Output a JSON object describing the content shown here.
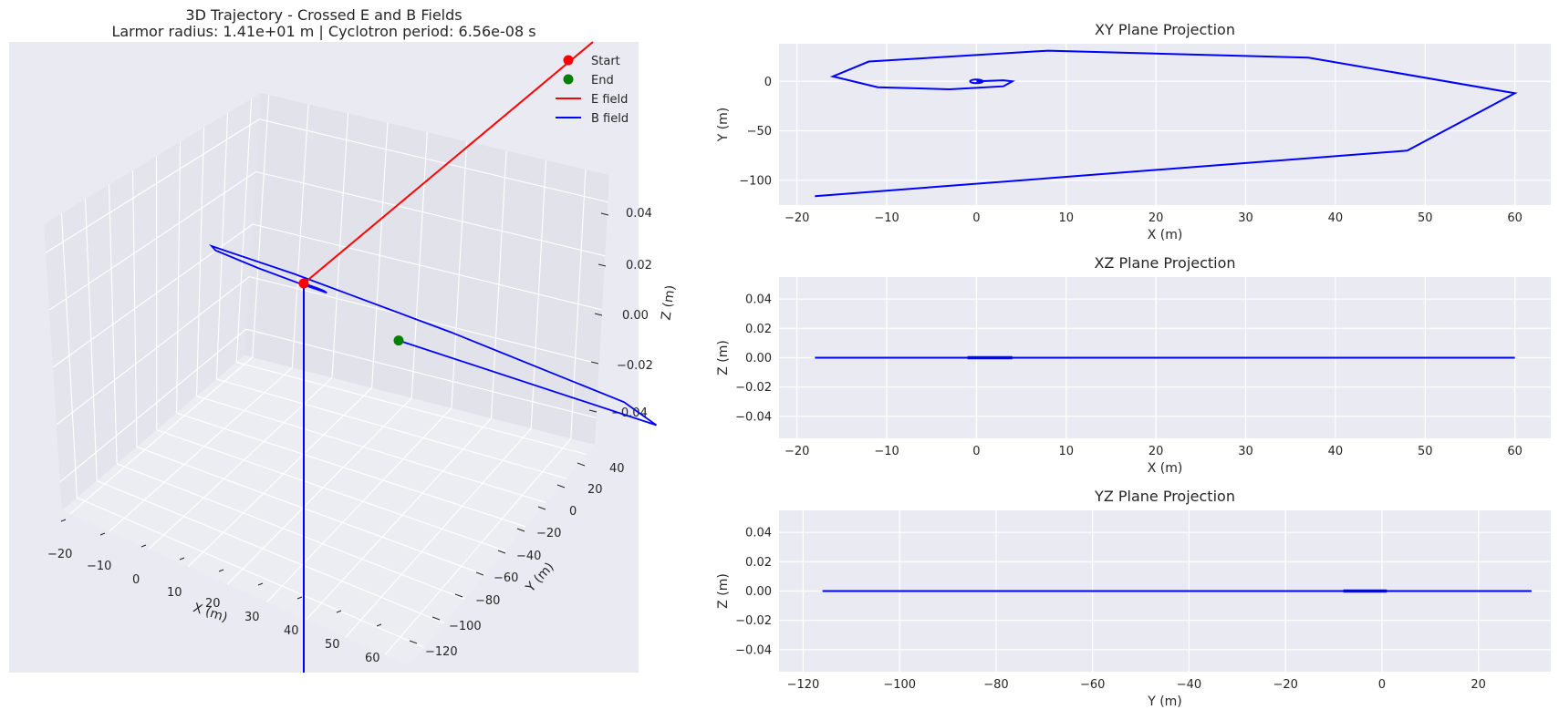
{
  "colors": {
    "panel_bg": "#eaeaf2",
    "grid": "#ffffff",
    "trajectory": "#0000ff",
    "e_field": "#ff0000",
    "start": "#ff0000",
    "end": "#008000"
  },
  "chart_data": [
    {
      "type": "line",
      "projection": "3d",
      "title": "3D Trajectory - Crossed E and B Fields",
      "subtitle": "Larmor radius: 1.41e+01 m | Cyclotron period: 6.56e-08 s",
      "xlabel": "X (m)",
      "ylabel": "Y (m)",
      "zlabel": "Z (m)",
      "xlim": [
        -22,
        66
      ],
      "ylim": [
        -135,
        48
      ],
      "zlim": [
        -0.05,
        0.05
      ],
      "x_ticks": [
        "−20",
        "−10",
        "0",
        "10",
        "20",
        "30",
        "40",
        "50",
        "60"
      ],
      "y_ticks": [
        "−120",
        "−100",
        "−80",
        "−60",
        "−40",
        "−20",
        "0",
        "20",
        "40"
      ],
      "z_ticks": [
        "−0.04",
        "−0.02",
        "0.00",
        "0.02",
        "0.04"
      ],
      "grid": true,
      "legend_position": "top-right",
      "legend": [
        {
          "label": "Start",
          "kind": "marker",
          "color": "#ff0000"
        },
        {
          "label": "End",
          "kind": "marker",
          "color": "#008000"
        },
        {
          "label": "E field",
          "kind": "line",
          "color": "#ff0000"
        },
        {
          "label": "B field",
          "kind": "line",
          "color": "#0000ff"
        }
      ],
      "trajectory": {
        "x": [
          0,
          3,
          4,
          3,
          -3,
          -11,
          -16,
          -12,
          8,
          37,
          60,
          48,
          -18
        ],
        "y": [
          0,
          1,
          0,
          -5,
          -8,
          -6,
          5,
          20,
          31,
          24,
          -12,
          -70,
          -116
        ],
        "z": [
          0,
          0,
          0,
          0,
          0,
          0,
          0,
          0,
          0,
          0,
          0,
          0,
          0
        ]
      },
      "start": {
        "x": 0,
        "y": 0,
        "z": 0
      },
      "end": {
        "x": -18,
        "y": -116,
        "z": 0
      }
    },
    {
      "type": "line",
      "title": "XY Plane Projection",
      "xlabel": "X (m)",
      "ylabel": "Y (m)",
      "xlim": [
        -22,
        64
      ],
      "ylim": [
        -125,
        38
      ],
      "x_ticks": [
        -20,
        -10,
        0,
        10,
        20,
        30,
        40,
        50,
        60
      ],
      "y_ticks": [
        -100,
        -50,
        0
      ],
      "y_tick_labels": [
        "−100",
        "−50",
        "0"
      ],
      "x_tick_labels": [
        "−20",
        "−10",
        "0",
        "10",
        "20",
        "30",
        "40",
        "50",
        "60"
      ],
      "grid": true,
      "x": [
        0,
        3,
        4,
        3,
        -3,
        -11,
        -16,
        -12,
        8,
        37,
        60,
        48,
        -18
      ],
      "y": [
        0,
        1,
        0,
        -5,
        -8,
        -6,
        5,
        20,
        31,
        24,
        -12,
        -70,
        -116
      ]
    },
    {
      "type": "line",
      "title": "XZ Plane Projection",
      "xlabel": "X (m)",
      "ylabel": "Z (m)",
      "xlim": [
        -22,
        64
      ],
      "ylim": [
        -0.055,
        0.055
      ],
      "x_ticks": [
        -20,
        -10,
        0,
        10,
        20,
        30,
        40,
        50,
        60
      ],
      "x_tick_labels": [
        "−20",
        "−10",
        "0",
        "10",
        "20",
        "30",
        "40",
        "50",
        "60"
      ],
      "y_ticks": [
        -0.04,
        -0.02,
        0.0,
        0.02,
        0.04
      ],
      "y_tick_labels": [
        "−0.04",
        "−0.02",
        "0.00",
        "0.02",
        "0.04"
      ],
      "grid": true,
      "x": [
        -18,
        60
      ],
      "y": [
        0,
        0
      ]
    },
    {
      "type": "line",
      "title": "YZ Plane Projection",
      "xlabel": "Y (m)",
      "ylabel": "Z (m)",
      "xlim": [
        -125,
        35
      ],
      "ylim": [
        -0.055,
        0.055
      ],
      "x_ticks": [
        -120,
        -100,
        -80,
        -60,
        -40,
        -20,
        0,
        20
      ],
      "x_tick_labels": [
        "−120",
        "−100",
        "−80",
        "−60",
        "−40",
        "−20",
        "0",
        "20"
      ],
      "y_ticks": [
        -0.04,
        -0.02,
        0.0,
        0.02,
        0.04
      ],
      "y_tick_labels": [
        "−0.04",
        "−0.02",
        "0.00",
        "0.02",
        "0.04"
      ],
      "grid": true,
      "x": [
        -116,
        31
      ],
      "y": [
        0,
        0
      ]
    }
  ]
}
